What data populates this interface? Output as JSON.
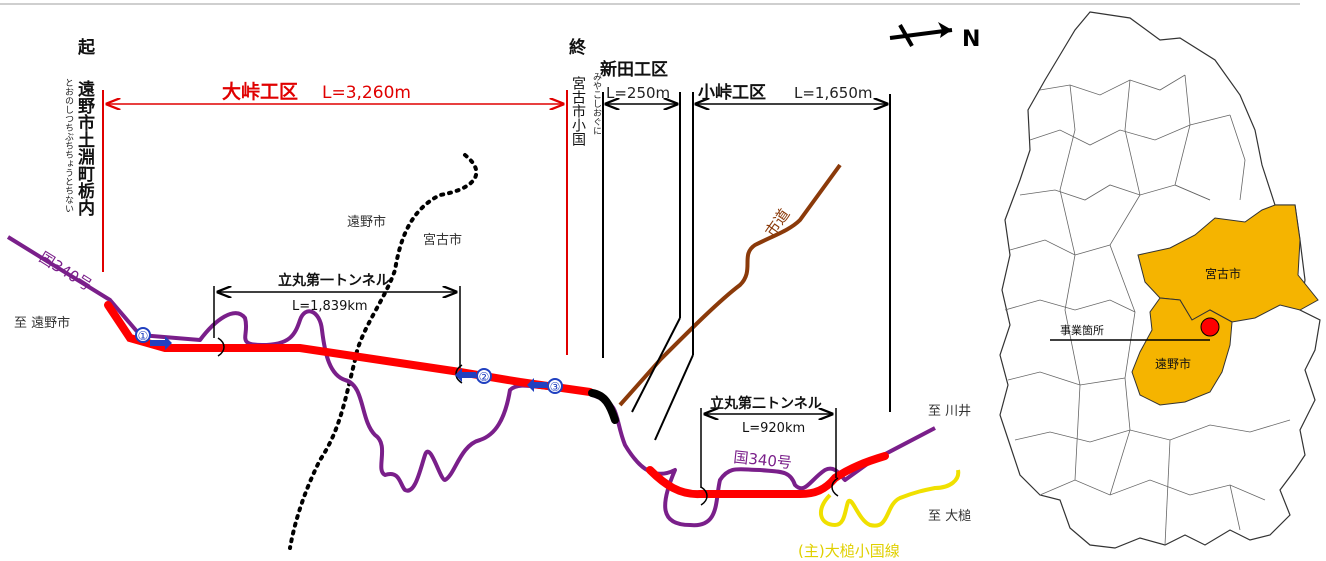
{
  "start_marker": "起",
  "start_place": "遠野市土淵町栃内",
  "start_reading": "とおのしつちぶちちょうとちない",
  "end_marker": "終",
  "end_place": "宮古市小国",
  "end_reading": "みやこしおぐに",
  "sections": [
    {
      "name": "大峠工区",
      "length": "L=3,260m"
    },
    {
      "name": "新田工区",
      "length": "L=250m"
    },
    {
      "name": "小峠工区",
      "length": "L=1,650m"
    }
  ],
  "tunnels": [
    {
      "name": "立丸第一トンネル",
      "length": "L=1,839km"
    },
    {
      "name": "立丸第二トンネル",
      "length": "L=920km"
    }
  ],
  "roads": {
    "national_1": "国340号",
    "national_2": "国340号",
    "city_road": "市道",
    "main_road": "(主)大槌小国線"
  },
  "directions": {
    "to_tono": "至 遠野市",
    "to_kawai": "至 川井",
    "to_otsuchi": "至 大槌"
  },
  "municipalities": {
    "tono": "遠野市",
    "miyako": "宮古市"
  },
  "points": [
    "①",
    "②",
    "③"
  ],
  "north": "N",
  "inset_map": {
    "miyako": "宮古市",
    "tono": "遠野市",
    "site": "事業箇所"
  },
  "colors": {
    "construction": "#ff0000",
    "completed": "#000000",
    "national_road": "#7a1f8a",
    "city_road": "#8b3a0a",
    "main_road": "#f0e000",
    "highlight_area": "#f5b400",
    "points": "#2040c0"
  }
}
